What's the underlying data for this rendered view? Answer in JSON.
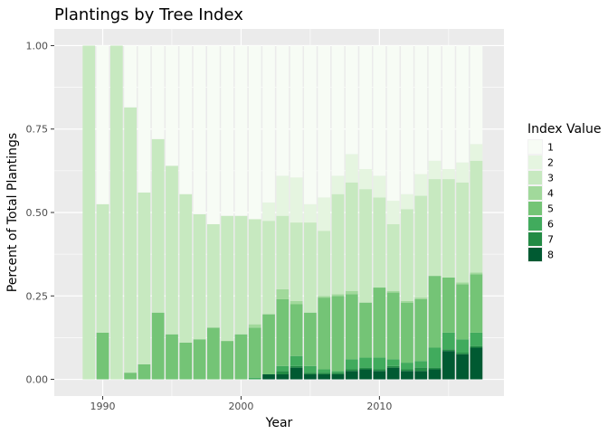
{
  "chart_data": {
    "type": "bar",
    "stacked": true,
    "title": "Plantings by Tree Index",
    "xlabel": "Year",
    "ylabel": "Percent of Total Plantings",
    "xlim": [
      1986.5,
      2019
    ],
    "ylim": [
      -0.05,
      1.05
    ],
    "x_ticks": [
      1990,
      2000,
      2010
    ],
    "x_tick_labels": [
      "1990",
      "2000",
      "2010"
    ],
    "y_ticks": [
      0,
      0.25,
      0.5,
      0.75,
      1.0
    ],
    "y_tick_labels": [
      "0.00",
      "0.25",
      "0.50",
      "0.75",
      "1.00"
    ],
    "grid": true,
    "legend": {
      "title": "Index Value",
      "placement": "right",
      "entries": [
        "1",
        "2",
        "3",
        "4",
        "5",
        "6",
        "7",
        "8"
      ]
    },
    "series_colors": [
      "#f7fcf5",
      "#e5f5e0",
      "#c7e9c0",
      "#a1d99b",
      "#74c476",
      "#41ab5d",
      "#238b45",
      "#005a32"
    ],
    "x": [
      1989,
      1990,
      1991,
      1992,
      1993,
      1994,
      1995,
      1996,
      1997,
      1998,
      1999,
      2000,
      2001,
      2002,
      2003,
      2004,
      2005,
      2006,
      2007,
      2008,
      2009,
      2010,
      2011,
      2012,
      2013,
      2014,
      2015,
      2016,
      2017
    ],
    "series": [
      {
        "name": "8",
        "values": [
          0,
          0,
          0,
          0,
          0,
          0,
          0,
          0,
          0,
          0,
          0,
          0,
          0,
          0.015,
          0.015,
          0.035,
          0.015,
          0.015,
          0.015,
          0.025,
          0.03,
          0.025,
          0.035,
          0.025,
          0.025,
          0.03,
          0.085,
          0.075,
          0.095
        ]
      },
      {
        "name": "7",
        "values": [
          0,
          0,
          0,
          0,
          0,
          0,
          0,
          0,
          0,
          0,
          0,
          0,
          0,
          0,
          0.01,
          0.005,
          0.005,
          0.005,
          0.005,
          0.005,
          0.005,
          0.005,
          0.005,
          0.005,
          0.01,
          0.005,
          0.005,
          0.005,
          0.005
        ]
      },
      {
        "name": "6",
        "values": [
          0,
          0,
          0,
          0,
          0,
          0,
          0,
          0,
          0,
          0,
          0,
          0,
          0.005,
          0,
          0.015,
          0.03,
          0.02,
          0.01,
          0.005,
          0.03,
          0.03,
          0.035,
          0.02,
          0.02,
          0.02,
          0.06,
          0.05,
          0.04,
          0.04
        ]
      },
      {
        "name": "5",
        "values": [
          0,
          0.14,
          0,
          0.02,
          0.045,
          0.2,
          0.135,
          0.11,
          0.12,
          0.155,
          0.115,
          0.135,
          0.15,
          0.18,
          0.2,
          0.155,
          0.16,
          0.215,
          0.225,
          0.195,
          0.165,
          0.21,
          0.2,
          0.18,
          0.185,
          0.215,
          0.165,
          0.165,
          0.175
        ]
      },
      {
        "name": "4",
        "values": [
          0,
          0,
          0,
          0,
          0,
          0,
          0,
          0,
          0,
          0,
          0,
          0,
          0.01,
          0,
          0.03,
          0.01,
          0,
          0.005,
          0.005,
          0.01,
          0,
          0,
          0.005,
          0.005,
          0.005,
          0,
          0,
          0.005,
          0.005
        ]
      },
      {
        "name": "3",
        "values": [
          1.0,
          0.385,
          1.0,
          0.795,
          0.515,
          0.52,
          0.505,
          0.445,
          0.375,
          0.31,
          0.375,
          0.355,
          0.315,
          0.28,
          0.22,
          0.235,
          0.27,
          0.195,
          0.3,
          0.325,
          0.34,
          0.27,
          0.2,
          0.275,
          0.305,
          0.29,
          0.295,
          0.3,
          0.335
        ]
      },
      {
        "name": "2",
        "values": [
          0,
          0,
          0,
          0,
          0,
          0,
          0,
          0,
          0,
          0,
          0,
          0,
          0,
          0.055,
          0.12,
          0.135,
          0.055,
          0.1,
          0.055,
          0.085,
          0.06,
          0.065,
          0.07,
          0.045,
          0.065,
          0.055,
          0.03,
          0.06,
          0.05
        ]
      },
      {
        "name": "1",
        "values": [
          0,
          0.475,
          0,
          0.185,
          0.44,
          0.28,
          0.36,
          0.445,
          0.505,
          0.535,
          0.51,
          0.51,
          0.52,
          0.47,
          0.39,
          0.395,
          0.475,
          0.455,
          0.39,
          0.325,
          0.37,
          0.39,
          0.465,
          0.445,
          0.385,
          0.345,
          0.37,
          0.35,
          0.295
        ]
      }
    ]
  }
}
